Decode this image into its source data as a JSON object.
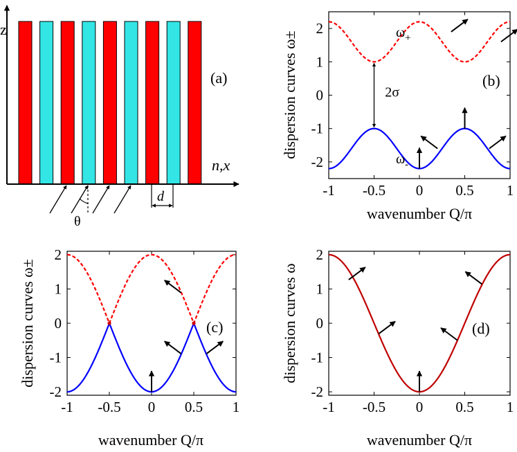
{
  "panel_a": {
    "label": "(a)",
    "axis_z": "z",
    "axis_nx": "n,x",
    "angle_symbol": "θ",
    "spacing_symbol": "d",
    "layer_colors": [
      "#ff0000",
      "#33e5e5"
    ],
    "layer_count": 9
  },
  "chart_data": [
    {
      "id": "b",
      "type": "line",
      "panel_label": "(b)",
      "title": "",
      "xlabel": "wavenumber Q/π",
      "ylabel": "dispersion curves ω±",
      "xlim": [
        -1,
        1
      ],
      "ylim": [
        -2.5,
        2.5
      ],
      "xticks": [
        -1,
        -0.5,
        0,
        0.5,
        1
      ],
      "xtick_labels": [
        "-1",
        "-0.5",
        "0",
        "0.5",
        "1"
      ],
      "yticks": [
        -2,
        -1,
        0,
        1,
        2
      ],
      "ytick_labels": [
        "-2",
        "-1",
        "0",
        "1",
        "2"
      ],
      "series": [
        {
          "name": "ω+",
          "formula": "1.6 + 0.6*cos(2πQ)",
          "color": "#ff0000",
          "style": "dashed",
          "x": [
            -1,
            -0.75,
            -0.5,
            -0.25,
            0,
            0.25,
            0.5,
            0.75,
            1
          ],
          "values": [
            2.2,
            1.6,
            1.0,
            1.6,
            2.2,
            1.6,
            1.0,
            1.6,
            2.2
          ]
        },
        {
          "name": "ω-",
          "formula": "-1.6 - 0.6*cos(2πQ)",
          "color": "#0000ff",
          "style": "solid",
          "x": [
            -1,
            -0.75,
            -0.5,
            -0.25,
            0,
            0.25,
            0.5,
            0.75,
            1
          ],
          "values": [
            -2.2,
            -1.6,
            -1.0,
            -1.6,
            -2.2,
            -1.6,
            -1.0,
            -1.6,
            -2.2
          ]
        }
      ],
      "labels": [
        {
          "text": "ω",
          "sub": "+",
          "x": -0.26,
          "y": 1.9
        },
        {
          "text": "ω",
          "sub": "-",
          "x": -0.26,
          "y": -1.9
        },
        {
          "text": "2σ",
          "x": -0.38,
          "y": 0.1
        }
      ],
      "gap_arrow": {
        "x": -0.5,
        "from": 1.0,
        "to": -1.0
      },
      "arrows": [
        {
          "x": 0.35,
          "y": 1.9,
          "dir": "up-right"
        },
        {
          "x": 0.9,
          "y": 1.6,
          "dir": "up-right"
        },
        {
          "x": 0.0,
          "y": -2.2,
          "dir": "up"
        },
        {
          "x": 0.2,
          "y": -1.6,
          "dir": "up-left"
        },
        {
          "x": 0.5,
          "y": -1.0,
          "dir": "up"
        },
        {
          "x": 0.77,
          "y": -1.6,
          "dir": "up-right"
        }
      ]
    },
    {
      "id": "c",
      "type": "line",
      "panel_label": "(c)",
      "title": "",
      "xlabel": "wavenumber Q/π",
      "ylabel": "dispersion curves ω±",
      "xlim": [
        -1,
        1
      ],
      "ylim": [
        -2.1,
        2.1
      ],
      "xticks": [
        -1,
        -0.5,
        0,
        0.5,
        1
      ],
      "xtick_labels": [
        "-1",
        "-0.5",
        "0",
        "0.5",
        "1"
      ],
      "yticks": [
        -2,
        -1,
        0,
        1,
        2
      ],
      "ytick_labels": [
        "-2",
        "-1",
        "0",
        "1",
        "2"
      ],
      "series": [
        {
          "name": "ω+",
          "formula": "2*|cos(πQ)|",
          "color": "#ff0000",
          "style": "dashed",
          "x": [
            -1,
            -0.75,
            -0.5,
            -0.25,
            0,
            0.25,
            0.5,
            0.75,
            1
          ],
          "values": [
            2,
            1.41,
            0,
            1.41,
            2,
            1.41,
            0,
            1.41,
            2
          ]
        },
        {
          "name": "ω-",
          "formula": "-2*|cos(πQ)|",
          "color": "#0000ff",
          "style": "solid",
          "x": [
            -1,
            -0.75,
            -0.5,
            -0.25,
            0,
            0.25,
            0.5,
            0.75,
            1
          ],
          "values": [
            -2,
            -1.41,
            0,
            -1.41,
            -2,
            -1.41,
            0,
            -1.41,
            -2
          ]
        }
      ],
      "labels": [],
      "arrows": [
        {
          "x": 0.0,
          "y": -2.0,
          "dir": "up"
        },
        {
          "x": 0.35,
          "y": 0.89,
          "dir": "up-left"
        },
        {
          "x": 0.35,
          "y": -0.89,
          "dir": "up-left"
        },
        {
          "x": 0.65,
          "y": -0.89,
          "dir": "up-right"
        }
      ]
    },
    {
      "id": "d",
      "type": "line",
      "panel_label": "(d)",
      "title": "",
      "xlabel": "wavenumber Q/π",
      "ylabel": "dispersion curves ω",
      "xlim": [
        -1,
        1
      ],
      "ylim": [
        -2.1,
        2.1
      ],
      "xticks": [
        -1,
        -0.5,
        0,
        0.5,
        1
      ],
      "xtick_labels": [
        "-1",
        "-0.5",
        "0",
        "0.5",
        "1"
      ],
      "yticks": [
        -2,
        -1,
        0,
        1,
        2
      ],
      "ytick_labels": [
        "-2",
        "-1",
        "0",
        "1",
        "2"
      ],
      "series": [
        {
          "name": "ω",
          "formula": "-2*cos(πQ)",
          "color": "#c00000",
          "style": "solid",
          "x": [
            -1,
            -0.75,
            -0.5,
            -0.25,
            0,
            0.25,
            0.5,
            0.75,
            1
          ],
          "values": [
            2,
            1.41,
            0,
            -1.41,
            -2,
            -1.41,
            0,
            1.41,
            2
          ]
        }
      ],
      "labels": [],
      "arrows": [
        {
          "x": -0.78,
          "y": 1.27,
          "dir": "up-right"
        },
        {
          "x": -0.45,
          "y": -0.31,
          "dir": "up-right"
        },
        {
          "x": 0.0,
          "y": -2.0,
          "dir": "up"
        },
        {
          "x": 0.42,
          "y": -0.5,
          "dir": "up-left"
        },
        {
          "x": 0.69,
          "y": 1.14,
          "dir": "up-left"
        }
      ]
    }
  ]
}
